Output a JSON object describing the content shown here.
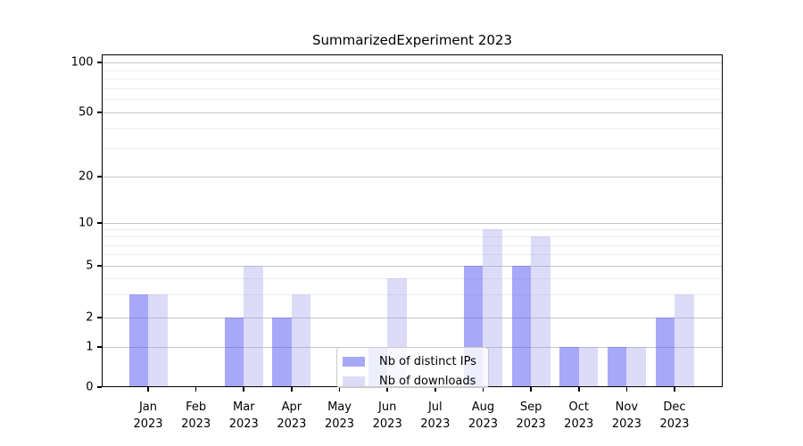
{
  "title": "SummarizedExperiment 2023",
  "chart_data": {
    "type": "bar",
    "title": "SummarizedExperiment 2023",
    "categories": [
      "Jan",
      "Feb",
      "Mar",
      "Apr",
      "May",
      "Jun",
      "Jul",
      "Aug",
      "Sep",
      "Oct",
      "Nov",
      "Dec"
    ],
    "category_subline": "2023",
    "series": [
      {
        "name": "Nb of distinct IPs",
        "values": [
          3,
          0,
          2,
          2,
          0,
          1,
          0,
          5,
          5,
          1,
          1,
          2
        ],
        "color": "rgba(89,89,243,0.52)"
      },
      {
        "name": "Nb of downloads",
        "values": [
          3,
          0,
          5,
          3,
          0,
          4,
          0,
          9,
          8,
          1,
          1,
          3
        ],
        "color": "rgba(158,158,238,0.36)"
      }
    ],
    "xlabel": "",
    "ylabel": "",
    "ylim": [
      0,
      100
    ],
    "y_major_ticks": [
      0,
      1,
      2,
      5,
      10,
      20,
      50,
      100
    ],
    "y_minor_gridlines": [
      3,
      4,
      6,
      7,
      8,
      9,
      30,
      40,
      60,
      70,
      80,
      90
    ],
    "scale": "log-like (0 pinned to baseline)",
    "grid": "horizontal major + faint minor",
    "legend_position": "inside bottom-center"
  },
  "colors": {
    "distinct_ips_bar": "rgba(89,89,243,0.52)",
    "downloads_bar": "rgba(158,158,238,0.36)",
    "major_gridline": "#c6c6c6",
    "minor_gridline": "#ededed",
    "axis_box": "#000000",
    "legend_border": "#c8c8c8"
  }
}
